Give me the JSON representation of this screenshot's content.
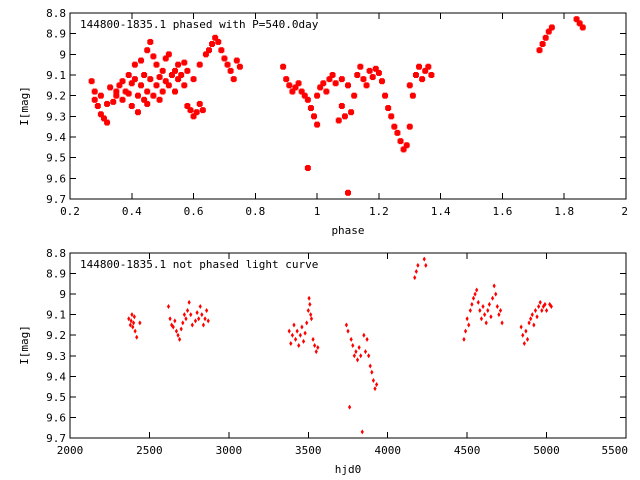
{
  "colors": {
    "points": "#ff0000",
    "axes": "#000000",
    "background": "#ffffff"
  },
  "chart_data": [
    {
      "type": "scatter",
      "title": "144800-1835.1 phased with P=540.0day",
      "xlabel": "phase",
      "ylabel": "I[mag]",
      "xlim": [
        0.2,
        2.0
      ],
      "ylim": [
        9.7,
        8.8
      ],
      "y_inverted": true,
      "xticks": [
        "0.2",
        "0.4",
        "0.6",
        "0.8",
        "1",
        "1.2",
        "1.4",
        "1.6",
        "1.8",
        "2"
      ],
      "yticks": [
        "8.8",
        "8.9",
        "9",
        "9.1",
        "9.2",
        "9.3",
        "9.4",
        "9.5",
        "9.6",
        "9.7"
      ],
      "grid": false,
      "legend": "none",
      "points": [
        [
          0.27,
          9.13
        ],
        [
          0.28,
          9.22
        ],
        [
          0.28,
          9.18
        ],
        [
          0.29,
          9.25
        ],
        [
          0.3,
          9.2
        ],
        [
          0.3,
          9.29
        ],
        [
          0.31,
          9.31
        ],
        [
          0.32,
          9.33
        ],
        [
          0.32,
          9.24
        ],
        [
          0.33,
          9.16
        ],
        [
          0.34,
          9.23
        ],
        [
          0.35,
          9.2
        ],
        [
          0.35,
          9.18
        ],
        [
          0.36,
          9.15
        ],
        [
          0.37,
          9.13
        ],
        [
          0.37,
          9.22
        ],
        [
          0.38,
          9.18
        ],
        [
          0.39,
          9.1
        ],
        [
          0.39,
          9.19
        ],
        [
          0.4,
          9.14
        ],
        [
          0.4,
          9.25
        ],
        [
          0.41,
          9.12
        ],
        [
          0.41,
          9.05
        ],
        [
          0.42,
          9.2
        ],
        [
          0.42,
          9.28
        ],
        [
          0.43,
          9.15
        ],
        [
          0.43,
          9.03
        ],
        [
          0.44,
          9.22
        ],
        [
          0.44,
          9.1
        ],
        [
          0.45,
          8.98
        ],
        [
          0.45,
          9.18
        ],
        [
          0.45,
          9.24
        ],
        [
          0.46,
          9.12
        ],
        [
          0.46,
          8.94
        ],
        [
          0.47,
          9.2
        ],
        [
          0.47,
          9.01
        ],
        [
          0.48,
          9.15
        ],
        [
          0.48,
          9.05
        ],
        [
          0.49,
          9.11
        ],
        [
          0.49,
          9.22
        ],
        [
          0.5,
          9.18
        ],
        [
          0.5,
          9.08
        ],
        [
          0.51,
          9.02
        ],
        [
          0.51,
          9.13
        ],
        [
          0.52,
          9.15
        ],
        [
          0.52,
          9.0
        ],
        [
          0.53,
          9.1
        ],
        [
          0.54,
          9.08
        ],
        [
          0.54,
          9.18
        ],
        [
          0.55,
          9.05
        ],
        [
          0.55,
          9.12
        ],
        [
          0.56,
          9.1
        ],
        [
          0.57,
          9.15
        ],
        [
          0.57,
          9.04
        ],
        [
          0.58,
          9.25
        ],
        [
          0.58,
          9.08
        ],
        [
          0.59,
          9.27
        ],
        [
          0.6,
          9.3
        ],
        [
          0.6,
          9.12
        ],
        [
          0.61,
          9.28
        ],
        [
          0.62,
          9.24
        ],
        [
          0.62,
          9.05
        ],
        [
          0.63,
          9.27
        ],
        [
          0.64,
          9.0
        ],
        [
          0.65,
          8.98
        ],
        [
          0.66,
          8.95
        ],
        [
          0.67,
          8.92
        ],
        [
          0.68,
          8.94
        ],
        [
          0.69,
          8.98
        ],
        [
          0.7,
          9.02
        ],
        [
          0.71,
          9.05
        ],
        [
          0.72,
          9.08
        ],
        [
          0.73,
          9.12
        ],
        [
          0.74,
          9.03
        ],
        [
          0.75,
          9.06
        ],
        [
          0.89,
          9.06
        ],
        [
          0.9,
          9.12
        ],
        [
          0.91,
          9.15
        ],
        [
          0.92,
          9.18
        ],
        [
          0.93,
          9.16
        ],
        [
          0.94,
          9.14
        ],
        [
          0.95,
          9.18
        ],
        [
          0.96,
          9.2
        ],
        [
          0.97,
          9.55
        ],
        [
          0.97,
          9.22
        ],
        [
          0.98,
          9.26
        ],
        [
          0.99,
          9.3
        ],
        [
          1.0,
          9.34
        ],
        [
          1.0,
          9.2
        ],
        [
          1.01,
          9.16
        ],
        [
          1.02,
          9.14
        ],
        [
          1.03,
          9.18
        ],
        [
          1.04,
          9.12
        ],
        [
          1.05,
          9.1
        ],
        [
          1.06,
          9.14
        ],
        [
          1.07,
          9.32
        ],
        [
          1.08,
          9.25
        ],
        [
          1.08,
          9.12
        ],
        [
          1.09,
          9.3
        ],
        [
          1.1,
          9.67
        ],
        [
          1.1,
          9.15
        ],
        [
          1.11,
          9.28
        ],
        [
          1.12,
          9.2
        ],
        [
          1.13,
          9.1
        ],
        [
          1.14,
          9.06
        ],
        [
          1.15,
          9.12
        ],
        [
          1.16,
          9.15
        ],
        [
          1.17,
          9.08
        ],
        [
          1.18,
          9.11
        ],
        [
          1.19,
          9.07
        ],
        [
          1.2,
          9.09
        ],
        [
          1.21,
          9.13
        ],
        [
          1.22,
          9.2
        ],
        [
          1.23,
          9.26
        ],
        [
          1.24,
          9.3
        ],
        [
          1.25,
          9.35
        ],
        [
          1.26,
          9.38
        ],
        [
          1.27,
          9.42
        ],
        [
          1.28,
          9.46
        ],
        [
          1.29,
          9.44
        ],
        [
          1.3,
          9.35
        ],
        [
          1.3,
          9.15
        ],
        [
          1.31,
          9.2
        ],
        [
          1.32,
          9.1
        ],
        [
          1.33,
          9.06
        ],
        [
          1.34,
          9.12
        ],
        [
          1.35,
          9.08
        ],
        [
          1.36,
          9.06
        ],
        [
          1.37,
          9.1
        ],
        [
          1.72,
          8.98
        ],
        [
          1.73,
          8.95
        ],
        [
          1.74,
          8.92
        ],
        [
          1.75,
          8.89
        ],
        [
          1.76,
          8.87
        ],
        [
          1.84,
          8.83
        ],
        [
          1.85,
          8.85
        ],
        [
          1.86,
          8.87
        ]
      ]
    },
    {
      "type": "scatter",
      "title": "144800-1835.1 not phased light curve",
      "xlabel": "hjd0",
      "ylabel": "I[mag]",
      "xlim": [
        2000,
        5500
      ],
      "ylim": [
        9.7,
        8.8
      ],
      "y_inverted": true,
      "xticks": [
        "2000",
        "2500",
        "3000",
        "3500",
        "4000",
        "4500",
        "5000",
        "5500"
      ],
      "yticks": [
        "8.8",
        "8.9",
        "9",
        "9.1",
        "9.2",
        "9.3",
        "9.4",
        "9.5",
        "9.6",
        "9.7"
      ],
      "grid": false,
      "legend": "none",
      "points": [
        [
          2370,
          9.12
        ],
        [
          2380,
          9.15
        ],
        [
          2385,
          9.13
        ],
        [
          2390,
          9.1
        ],
        [
          2395,
          9.16
        ],
        [
          2400,
          9.14
        ],
        [
          2405,
          9.11
        ],
        [
          2410,
          9.18
        ],
        [
          2420,
          9.21
        ],
        [
          2440,
          9.14
        ],
        [
          2620,
          9.06
        ],
        [
          2630,
          9.12
        ],
        [
          2640,
          9.15
        ],
        [
          2650,
          9.16
        ],
        [
          2660,
          9.13
        ],
        [
          2670,
          9.18
        ],
        [
          2680,
          9.2
        ],
        [
          2690,
          9.22
        ],
        [
          2700,
          9.17
        ],
        [
          2710,
          9.14
        ],
        [
          2720,
          9.1
        ],
        [
          2730,
          9.12
        ],
        [
          2740,
          9.08
        ],
        [
          2750,
          9.04
        ],
        [
          2760,
          9.1
        ],
        [
          2770,
          9.15
        ],
        [
          2790,
          9.13
        ],
        [
          2800,
          9.09
        ],
        [
          2810,
          9.12
        ],
        [
          2820,
          9.06
        ],
        [
          2830,
          9.1
        ],
        [
          2840,
          9.15
        ],
        [
          2850,
          9.12
        ],
        [
          2860,
          9.08
        ],
        [
          2870,
          9.13
        ],
        [
          3380,
          9.18
        ],
        [
          3390,
          9.24
        ],
        [
          3400,
          9.2
        ],
        [
          3410,
          9.15
        ],
        [
          3420,
          9.22
        ],
        [
          3430,
          9.18
        ],
        [
          3440,
          9.25
        ],
        [
          3450,
          9.2
        ],
        [
          3460,
          9.16
        ],
        [
          3470,
          9.23
        ],
        [
          3480,
          9.19
        ],
        [
          3490,
          9.14
        ],
        [
          3500,
          9.08
        ],
        [
          3505,
          9.02
        ],
        [
          3510,
          9.05
        ],
        [
          3515,
          9.1
        ],
        [
          3520,
          9.12
        ],
        [
          3530,
          9.22
        ],
        [
          3540,
          9.25
        ],
        [
          3550,
          9.28
        ],
        [
          3560,
          9.26
        ],
        [
          3740,
          9.15
        ],
        [
          3750,
          9.18
        ],
        [
          3760,
          9.55
        ],
        [
          3770,
          9.22
        ],
        [
          3780,
          9.25
        ],
        [
          3790,
          9.3
        ],
        [
          3800,
          9.28
        ],
        [
          3810,
          9.32
        ],
        [
          3820,
          9.26
        ],
        [
          3830,
          9.3
        ],
        [
          3840,
          9.67
        ],
        [
          3850,
          9.2
        ],
        [
          3860,
          9.28
        ],
        [
          3870,
          9.22
        ],
        [
          3880,
          9.3
        ],
        [
          3890,
          9.35
        ],
        [
          3900,
          9.38
        ],
        [
          3910,
          9.42
        ],
        [
          3920,
          9.46
        ],
        [
          3930,
          9.44
        ],
        [
          4170,
          8.92
        ],
        [
          4180,
          8.89
        ],
        [
          4190,
          8.86
        ],
        [
          4230,
          8.83
        ],
        [
          4240,
          8.86
        ],
        [
          4480,
          9.22
        ],
        [
          4490,
          9.18
        ],
        [
          4500,
          9.12
        ],
        [
          4510,
          9.15
        ],
        [
          4520,
          9.08
        ],
        [
          4530,
          9.05
        ],
        [
          4540,
          9.02
        ],
        [
          4550,
          9.0
        ],
        [
          4560,
          8.98
        ],
        [
          4570,
          9.04
        ],
        [
          4580,
          9.08
        ],
        [
          4590,
          9.12
        ],
        [
          4600,
          9.06
        ],
        [
          4610,
          9.1
        ],
        [
          4620,
          9.14
        ],
        [
          4630,
          9.08
        ],
        [
          4640,
          9.05
        ],
        [
          4650,
          9.11
        ],
        [
          4660,
          9.02
        ],
        [
          4670,
          8.96
        ],
        [
          4680,
          9.0
        ],
        [
          4690,
          9.06
        ],
        [
          4700,
          9.1
        ],
        [
          4710,
          9.08
        ],
        [
          4720,
          9.14
        ],
        [
          4840,
          9.16
        ],
        [
          4850,
          9.2
        ],
        [
          4860,
          9.24
        ],
        [
          4870,
          9.18
        ],
        [
          4880,
          9.22
        ],
        [
          4890,
          9.14
        ],
        [
          4900,
          9.12
        ],
        [
          4910,
          9.1
        ],
        [
          4920,
          9.15
        ],
        [
          4930,
          9.08
        ],
        [
          4940,
          9.11
        ],
        [
          4950,
          9.06
        ],
        [
          4960,
          9.04
        ],
        [
          4970,
          9.08
        ],
        [
          4980,
          9.06
        ],
        [
          4990,
          9.05
        ],
        [
          5000,
          9.08
        ],
        [
          5020,
          9.05
        ],
        [
          5030,
          9.06
        ]
      ]
    }
  ]
}
